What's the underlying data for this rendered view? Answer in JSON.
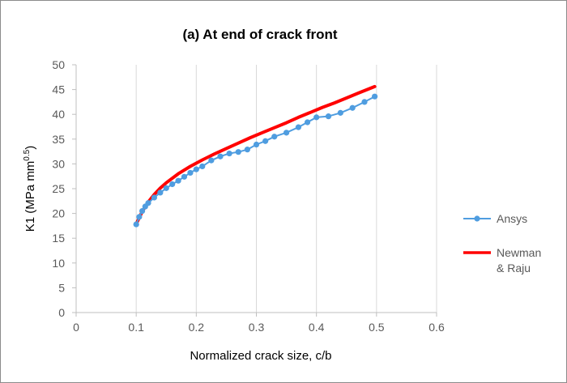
{
  "chart_data": {
    "type": "line",
    "title": "(a) At end of crack front",
    "xlabel": "Normalized crack size, c/b",
    "ylabel": "K1 (MPa mm",
    "ylabel_sup": "0.5",
    "ylabel_close": ")",
    "xlim": [
      0,
      0.6
    ],
    "ylim": [
      0,
      50
    ],
    "x_ticks": [
      0,
      0.1,
      0.2,
      0.3,
      0.4,
      0.5,
      0.6
    ],
    "x_tick_labels": [
      "0",
      "0.1",
      "0.2",
      "0.3",
      "0.4",
      "0.5",
      "0.6"
    ],
    "y_ticks": [
      0,
      5,
      10,
      15,
      20,
      25,
      30,
      35,
      40,
      45,
      50
    ],
    "y_tick_labels": [
      "0",
      "5",
      "10",
      "15",
      "20",
      "25",
      "30",
      "35",
      "40",
      "45",
      "50"
    ],
    "grid": "vertical",
    "legend_position": "right",
    "series": [
      {
        "name": "Ansys",
        "color": "#4f9de0",
        "marker": "circle",
        "x": [
          0.1,
          0.105,
          0.11,
          0.115,
          0.12,
          0.13,
          0.14,
          0.15,
          0.16,
          0.17,
          0.18,
          0.19,
          0.2,
          0.21,
          0.225,
          0.24,
          0.255,
          0.27,
          0.285,
          0.3,
          0.315,
          0.33,
          0.35,
          0.37,
          0.385,
          0.4,
          0.42,
          0.44,
          0.46,
          0.48,
          0.497
        ],
        "y": [
          17.8,
          19.3,
          20.5,
          21.4,
          22.1,
          23.2,
          24.2,
          25.1,
          25.9,
          26.6,
          27.4,
          28.2,
          28.9,
          29.5,
          30.7,
          31.5,
          32.1,
          32.4,
          32.9,
          33.9,
          34.6,
          35.5,
          36.3,
          37.4,
          38.4,
          39.4,
          39.6,
          40.3,
          41.3,
          42.5,
          43.6
        ]
      },
      {
        "name": "Newman",
        "name_line2": "& Raju",
        "color": "#ff0000",
        "marker": "none",
        "x": [
          0.1,
          0.11,
          0.12,
          0.13,
          0.14,
          0.15,
          0.17,
          0.19,
          0.21,
          0.23,
          0.25,
          0.27,
          0.29,
          0.31,
          0.33,
          0.35,
          0.37,
          0.39,
          0.41,
          0.43,
          0.45,
          0.47,
          0.497
        ],
        "y": [
          17.9,
          20.4,
          22.3,
          23.8,
          25.1,
          26.2,
          28.0,
          29.5,
          30.8,
          32.0,
          33.1,
          34.2,
          35.3,
          36.3,
          37.3,
          38.3,
          39.4,
          40.4,
          41.4,
          42.3,
          43.3,
          44.3,
          45.6
        ]
      }
    ]
  }
}
